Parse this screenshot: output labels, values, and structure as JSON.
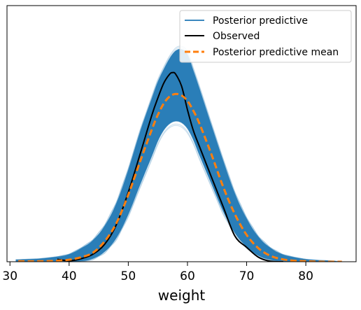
{
  "chart_data": {
    "type": "line",
    "title": "",
    "xlabel": "weight",
    "ylabel": "",
    "xlim": [
      29.5,
      88.5
    ],
    "ylim": [
      0,
      0.0516
    ],
    "x_ticks": [
      30,
      40,
      50,
      60,
      70,
      80
    ],
    "y_ticks_visible": false,
    "legend_position": "top-right",
    "legend": [
      {
        "label": "Posterior predictive",
        "style": "solid",
        "color": "#1f77b4"
      },
      {
        "label": "Observed",
        "style": "solid",
        "color": "#000000"
      },
      {
        "label": "Posterior predictive mean",
        "style": "dashed",
        "color": "#ff7f0e"
      }
    ],
    "series": [
      {
        "name": "Posterior predictive mean",
        "color": "#ff7f0e",
        "style": "dashed",
        "x": [
          31.4,
          35,
          38,
          40,
          42,
          44,
          46,
          48,
          50,
          52,
          54,
          55,
          56,
          57,
          58,
          59,
          60,
          61,
          62,
          64,
          66,
          68,
          70,
          72,
          74,
          76,
          78,
          80,
          83,
          86.1
        ],
        "y": [
          0.0001,
          0.0001,
          0.0002,
          0.0004,
          0.0009,
          0.0018,
          0.0041,
          0.0078,
          0.0135,
          0.0202,
          0.0267,
          0.0296,
          0.0319,
          0.0333,
          0.0338,
          0.0335,
          0.0324,
          0.0304,
          0.0279,
          0.0218,
          0.0152,
          0.0096,
          0.0054,
          0.0027,
          0.0012,
          0.0005,
          0.0002,
          0.0001,
          0.0,
          0.0
        ]
      },
      {
        "name": "Observed",
        "color": "#000000",
        "style": "solid",
        "x": [
          38,
          40,
          42,
          44,
          46,
          48,
          50,
          52,
          54,
          55,
          56,
          57,
          57.5,
          58,
          59,
          60,
          61,
          62,
          64,
          66,
          68,
          70,
          72,
          74,
          76.2
        ],
        "y": [
          0.0005,
          0.0002,
          0.0006,
          0.0015,
          0.0035,
          0.0075,
          0.014,
          0.0217,
          0.0296,
          0.033,
          0.036,
          0.0378,
          0.0381,
          0.0378,
          0.0354,
          0.0306,
          0.0264,
          0.0233,
          0.0172,
          0.0112,
          0.0052,
          0.0029,
          0.0009,
          0.0001,
          0.0
        ]
      }
    ],
    "posterior_predictive_band": {
      "name": "Posterior predictive",
      "color": "#1f77b4",
      "x": [
        31,
        35,
        38,
        40,
        42,
        44,
        46,
        48,
        50,
        52,
        54,
        55,
        56,
        57,
        58,
        59,
        60,
        61,
        62,
        64,
        66,
        68,
        70,
        72,
        74,
        76,
        78,
        80,
        82,
        84,
        85.5
      ],
      "upper": [
        0.0004,
        0.0006,
        0.001,
        0.0015,
        0.0027,
        0.0043,
        0.0072,
        0.0118,
        0.0185,
        0.0262,
        0.033,
        0.0363,
        0.0388,
        0.041,
        0.0425,
        0.0428,
        0.0418,
        0.0385,
        0.035,
        0.0277,
        0.0205,
        0.0138,
        0.0087,
        0.005,
        0.0028,
        0.0015,
        0.0009,
        0.0005,
        0.0003,
        0.0002,
        0.0001
      ],
      "lower": [
        0.0,
        0.0,
        0.0,
        0.0,
        0.0001,
        0.0006,
        0.002,
        0.0048,
        0.0095,
        0.0155,
        0.0213,
        0.0243,
        0.0265,
        0.0278,
        0.0283,
        0.028,
        0.0268,
        0.0245,
        0.0215,
        0.0158,
        0.0102,
        0.0058,
        0.003,
        0.0012,
        0.0004,
        0.0001,
        0.0,
        0.0,
        0.0,
        0.0,
        0.0
      ]
    }
  }
}
